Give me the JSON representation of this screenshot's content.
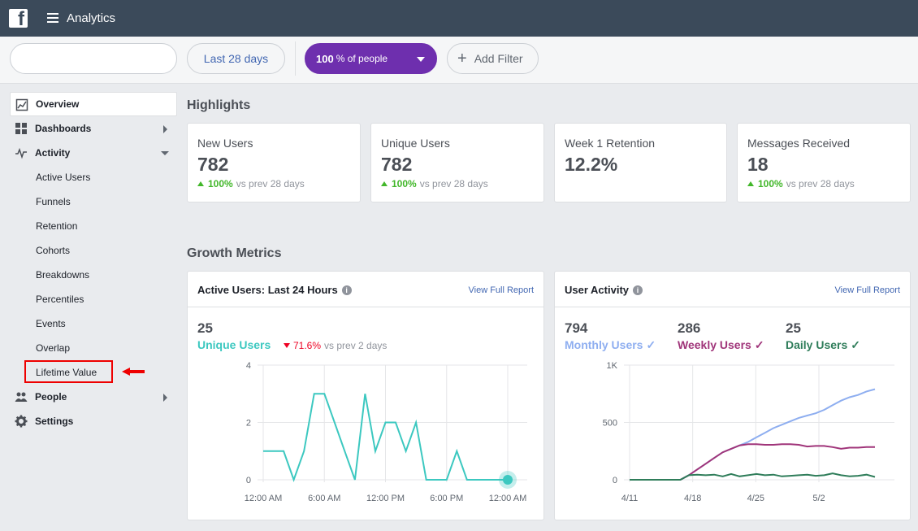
{
  "header": {
    "logo": "f",
    "title": "Analytics"
  },
  "filters": {
    "search_value": "",
    "date_range": "Last 28 days",
    "people_pct": "100",
    "people_suffix": "% of people",
    "add_filter": "Add Filter"
  },
  "sidebar": {
    "items": [
      {
        "label": "Overview",
        "icon": "line-chart-icon"
      },
      {
        "label": "Dashboards",
        "icon": "grid-icon"
      },
      {
        "label": "Activity",
        "icon": "pulse-icon"
      },
      {
        "label": "People",
        "icon": "people-icon"
      },
      {
        "label": "Settings",
        "icon": "gear-icon"
      }
    ],
    "activity_sub": [
      "Active Users",
      "Funnels",
      "Retention",
      "Cohorts",
      "Breakdowns",
      "Percentiles",
      "Events",
      "Overlap",
      "Lifetime Value"
    ]
  },
  "highlights": {
    "title": "Highlights",
    "cards": [
      {
        "label": "New Users",
        "value": "782",
        "change": "100%",
        "suffix": "vs prev 28 days"
      },
      {
        "label": "Unique Users",
        "value": "782",
        "change": "100%",
        "suffix": "vs prev 28 days"
      },
      {
        "label": "Week 1 Retention",
        "value": "12.2%"
      },
      {
        "label": "Messages Received",
        "value": "18",
        "change": "100%",
        "suffix": "vs prev 28 days"
      }
    ]
  },
  "growth": {
    "title": "Growth Metrics",
    "active_users": {
      "title": "Active Users: Last 24 Hours",
      "link": "View Full Report",
      "value": "25",
      "label": "Unique Users",
      "change": "71.6%",
      "suffix": "vs prev 2 days"
    },
    "user_activity": {
      "title": "User Activity",
      "link": "View Full Report",
      "metrics": [
        {
          "value": "794",
          "label": "Monthly Users"
        },
        {
          "value": "286",
          "label": "Weekly Users"
        },
        {
          "value": "25",
          "label": "Daily Users"
        }
      ]
    }
  },
  "colors": {
    "teal": "#3cc8c0",
    "blue": "#8eaef0",
    "purple": "#a0357a",
    "green": "#2f7d5a",
    "brand_purple": "#6e2fae"
  },
  "chart_data": [
    {
      "type": "line",
      "title": "Active Users: Last 24 Hours",
      "x_ticks": [
        "12:00 AM",
        "6:00 AM",
        "12:00 PM",
        "6:00 PM",
        "12:00 AM"
      ],
      "y_ticks": [
        "0",
        "2",
        "4"
      ],
      "ylim": [
        0,
        4
      ],
      "grid": true,
      "series": [
        {
          "name": "Unique Users",
          "color": "#3cc8c0",
          "values": [
            1,
            1,
            1,
            0,
            1,
            3,
            3,
            2,
            1,
            0,
            3,
            1,
            2,
            2,
            1,
            2,
            0,
            0,
            0,
            1,
            0,
            0,
            0,
            0,
            0
          ]
        }
      ]
    },
    {
      "type": "line",
      "title": "User Activity",
      "x_ticks": [
        "4/11",
        "4/18",
        "4/25",
        "5/2"
      ],
      "y_ticks": [
        "0",
        "500",
        "1K"
      ],
      "ylim": [
        0,
        1000
      ],
      "grid": true,
      "series": [
        {
          "name": "Monthly Users",
          "color": "#8eaef0",
          "values": [
            0,
            0,
            0,
            0,
            0,
            0,
            0,
            40,
            90,
            140,
            190,
            240,
            270,
            300,
            330,
            370,
            410,
            450,
            480,
            510,
            540,
            560,
            580,
            610,
            650,
            690,
            720,
            740,
            770,
            790
          ]
        },
        {
          "name": "Weekly Users",
          "color": "#a0357a",
          "values": [
            0,
            0,
            0,
            0,
            0,
            0,
            0,
            40,
            90,
            140,
            190,
            240,
            270,
            300,
            310,
            310,
            305,
            305,
            310,
            310,
            305,
            290,
            295,
            295,
            285,
            270,
            280,
            280,
            285,
            286
          ]
        },
        {
          "name": "Daily Users",
          "color": "#2f7d5a",
          "values": [
            0,
            0,
            0,
            0,
            0,
            0,
            0,
            40,
            45,
            40,
            45,
            30,
            50,
            30,
            40,
            50,
            40,
            45,
            30,
            35,
            40,
            45,
            35,
            40,
            55,
            40,
            30,
            35,
            45,
            25
          ]
        }
      ]
    }
  ]
}
